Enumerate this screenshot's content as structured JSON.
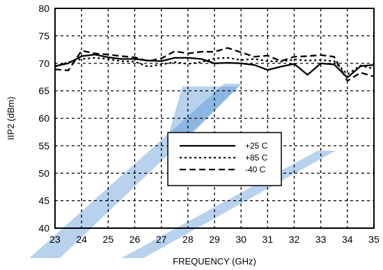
{
  "chart_data": {
    "type": "line",
    "title": "",
    "xlabel": "FREQUENCY (GHz)",
    "ylabel": "IIP2 (dBm)",
    "xlim": [
      23,
      35
    ],
    "ylim": [
      40,
      80
    ],
    "xticks": [
      23,
      24,
      25,
      26,
      27,
      28,
      29,
      30,
      31,
      32,
      33,
      34,
      35
    ],
    "yticks": [
      40,
      45,
      50,
      55,
      60,
      65,
      70,
      75,
      80
    ],
    "grid": true,
    "legend_position": "center-right",
    "watermark_color": "#4e8fd3",
    "series": [
      {
        "name": "+25 C",
        "style": "solid",
        "x": [
          23,
          23.5,
          24,
          24.5,
          25,
          25.5,
          26,
          26.5,
          27,
          27.5,
          28,
          28.5,
          29,
          29.5,
          30,
          30.5,
          31,
          31.5,
          32,
          32.5,
          33,
          33.5,
          34,
          34.5,
          35
        ],
        "y": [
          69.5,
          70.0,
          71.3,
          71.6,
          71.1,
          70.8,
          70.8,
          70.5,
          70.4,
          71.0,
          71.0,
          70.8,
          70.0,
          70.1,
          70.0,
          69.7,
          68.8,
          69.4,
          69.9,
          67.9,
          70.0,
          69.8,
          67.4,
          69.5,
          69.7
        ]
      },
      {
        "name": "+85 C",
        "style": "dotted",
        "x": [
          23,
          23.5,
          24,
          24.5,
          25,
          25.5,
          26,
          26.5,
          27,
          27.5,
          28,
          28.5,
          29,
          29.5,
          30,
          30.5,
          31,
          31.5,
          32,
          32.5,
          33,
          33.5,
          34,
          34.5,
          35
        ],
        "y": [
          69.4,
          70.2,
          70.8,
          71.0,
          70.8,
          70.4,
          70.3,
          69.4,
          69.8,
          70.2,
          69.9,
          70.2,
          70.9,
          71.0,
          70.6,
          70.8,
          70.4,
          70.3,
          70.7,
          70.5,
          70.6,
          70.4,
          68.0,
          69.6,
          69.0
        ]
      },
      {
        "name": "-40 C",
        "style": "dashed",
        "x": [
          23,
          23.5,
          24,
          24.5,
          25,
          25.5,
          26,
          26.5,
          27,
          27.5,
          28,
          28.5,
          29,
          29.5,
          30,
          30.5,
          31,
          31.5,
          32,
          32.5,
          33,
          33.5,
          34,
          34.5,
          35
        ],
        "y": [
          68.9,
          68.7,
          72.3,
          71.8,
          71.6,
          71.3,
          71.1,
          70.4,
          70.9,
          72.2,
          71.8,
          72.1,
          72.1,
          72.8,
          72.0,
          71.2,
          71.4,
          70.4,
          71.2,
          71.3,
          71.5,
          71.2,
          66.8,
          68.3,
          67.6
        ]
      }
    ]
  }
}
